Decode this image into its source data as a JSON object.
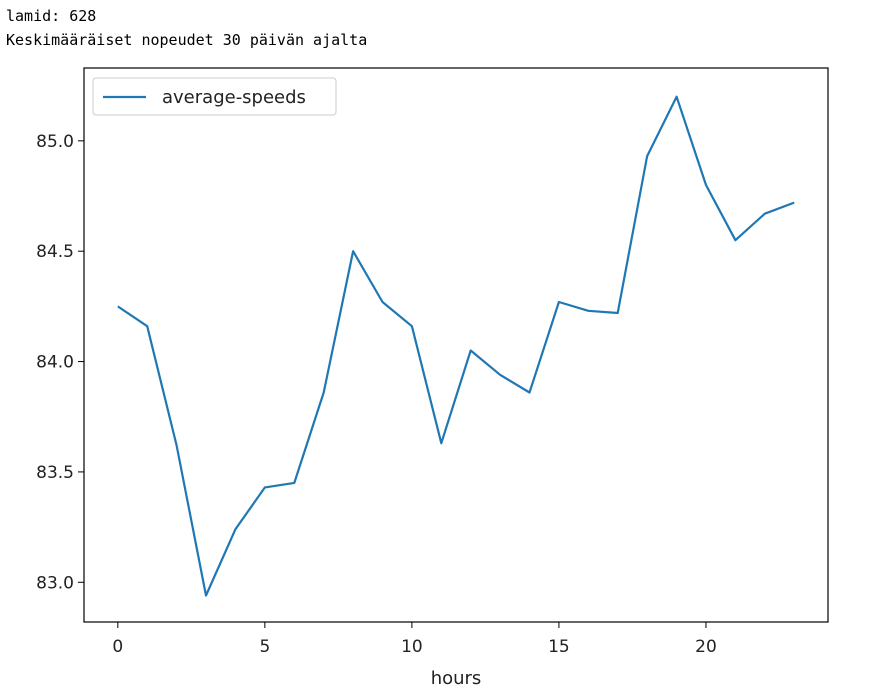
{
  "output": {
    "line1": "lamid: 628",
    "line2": "Keskimääräiset nopeudet 30 päivän ajalta"
  },
  "colors": {
    "series": "#1f77b4",
    "axes": "#000000",
    "text": "#222222"
  },
  "chart_data": {
    "type": "line",
    "title": "",
    "xlabel": "hours",
    "ylabel": "",
    "grid": false,
    "legend_position": "top-left",
    "xlim": [
      -1.15,
      24.15
    ],
    "ylim": [
      82.82,
      85.33
    ],
    "xticks": [
      0,
      5,
      10,
      15,
      20
    ],
    "xtick_labels": [
      "0",
      "5",
      "10",
      "15",
      "20"
    ],
    "yticks": [
      83.0,
      83.5,
      84.0,
      84.5,
      85.0
    ],
    "ytick_labels": [
      "83.0",
      "83.5",
      "84.0",
      "84.5",
      "85.0"
    ],
    "series": [
      {
        "name": "average-speeds",
        "x": [
          0,
          1,
          2,
          3,
          4,
          5,
          6,
          7,
          8,
          9,
          10,
          11,
          12,
          13,
          14,
          15,
          16,
          17,
          18,
          19,
          20,
          21,
          22,
          23
        ],
        "values": [
          84.25,
          84.16,
          83.62,
          82.94,
          83.24,
          83.43,
          83.45,
          83.86,
          84.5,
          84.27,
          84.16,
          83.63,
          84.05,
          83.94,
          83.86,
          84.27,
          84.23,
          84.22,
          84.93,
          85.2,
          84.8,
          84.55,
          84.67,
          84.72
        ]
      }
    ]
  }
}
